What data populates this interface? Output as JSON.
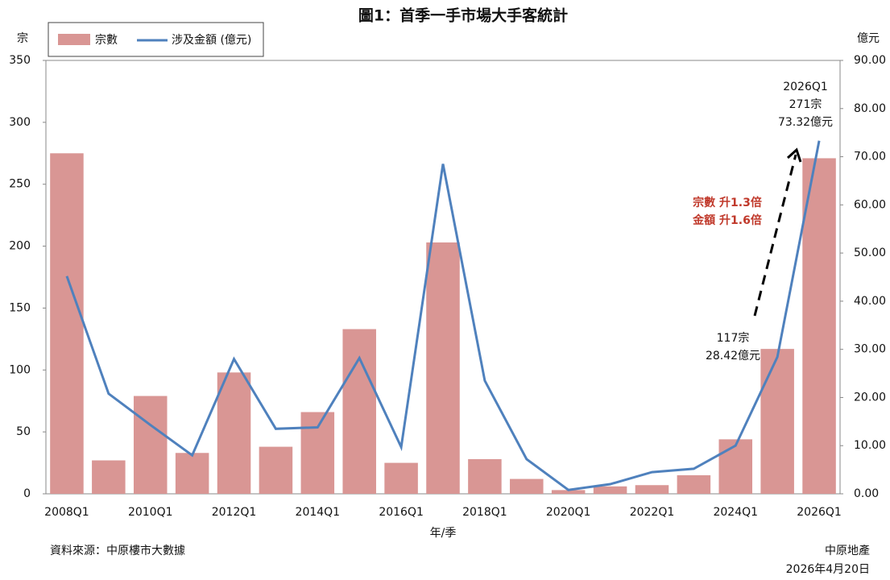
{
  "chart_data": {
    "type": "bar-line",
    "title": "圖1：首季一手市場大手客統計",
    "y_label": "宗",
    "y2_label": "億元",
    "x_label": "年/季",
    "categories": [
      "2008Q1",
      null,
      "2010Q1",
      null,
      "2012Q1",
      null,
      "2014Q1",
      null,
      "2016Q1",
      null,
      "2018Q1",
      null,
      "2020Q1",
      null,
      "2022Q1",
      null,
      "2024Q1",
      null,
      "2026Q1"
    ],
    "series": [
      {
        "name": "宗數",
        "type": "bar",
        "color": "#d99694",
        "values": [
          275,
          27,
          79,
          33,
          98,
          38,
          66,
          133,
          25,
          203,
          28,
          12,
          3,
          6,
          7,
          15,
          44,
          117,
          271
        ]
      },
      {
        "name": "涉及金額 (億元)",
        "type": "line",
        "axis": "y2",
        "color": "#4f81bd",
        "values": [
          45.2,
          20.8,
          14.3,
          8.0,
          28.0,
          13.5,
          13.8,
          28.2,
          9.7,
          68.5,
          23.5,
          7.2,
          0.8,
          2.0,
          4.5,
          5.2,
          10.0,
          28.42,
          73.32
        ]
      }
    ],
    "ylim": [
      0,
      350
    ],
    "yticks": [
      0,
      50,
      100,
      150,
      200,
      250,
      300,
      350
    ],
    "y2lim": [
      0,
      90
    ],
    "y2ticks": [
      {
        "value": 0,
        "label": "0.00"
      },
      {
        "value": 10,
        "label": "10.00"
      },
      {
        "value": 20,
        "label": "20.00"
      },
      {
        "value": 30,
        "label": "30.00"
      },
      {
        "value": 40,
        "label": "40.00"
      },
      {
        "value": 50,
        "label": "50.00"
      },
      {
        "value": 60,
        "label": "60.00"
      },
      {
        "value": 70,
        "label": "70.00"
      },
      {
        "value": 80,
        "label": "80.00"
      },
      {
        "value": 90,
        "label": "90.00"
      }
    ],
    "annotations": [
      {
        "lines": [
          "2026Q1",
          "271宗",
          "73.32億元"
        ]
      },
      {
        "lines": [
          "117宗",
          "28.42億元"
        ]
      },
      {
        "lines": [
          "宗數 升1.3倍",
          "金額 升1.6倍"
        ],
        "color": "#c0392b"
      }
    ],
    "source": "資料來源：中原樓市大數據",
    "publisher": "中原地產",
    "date": "2026年4月20日"
  }
}
